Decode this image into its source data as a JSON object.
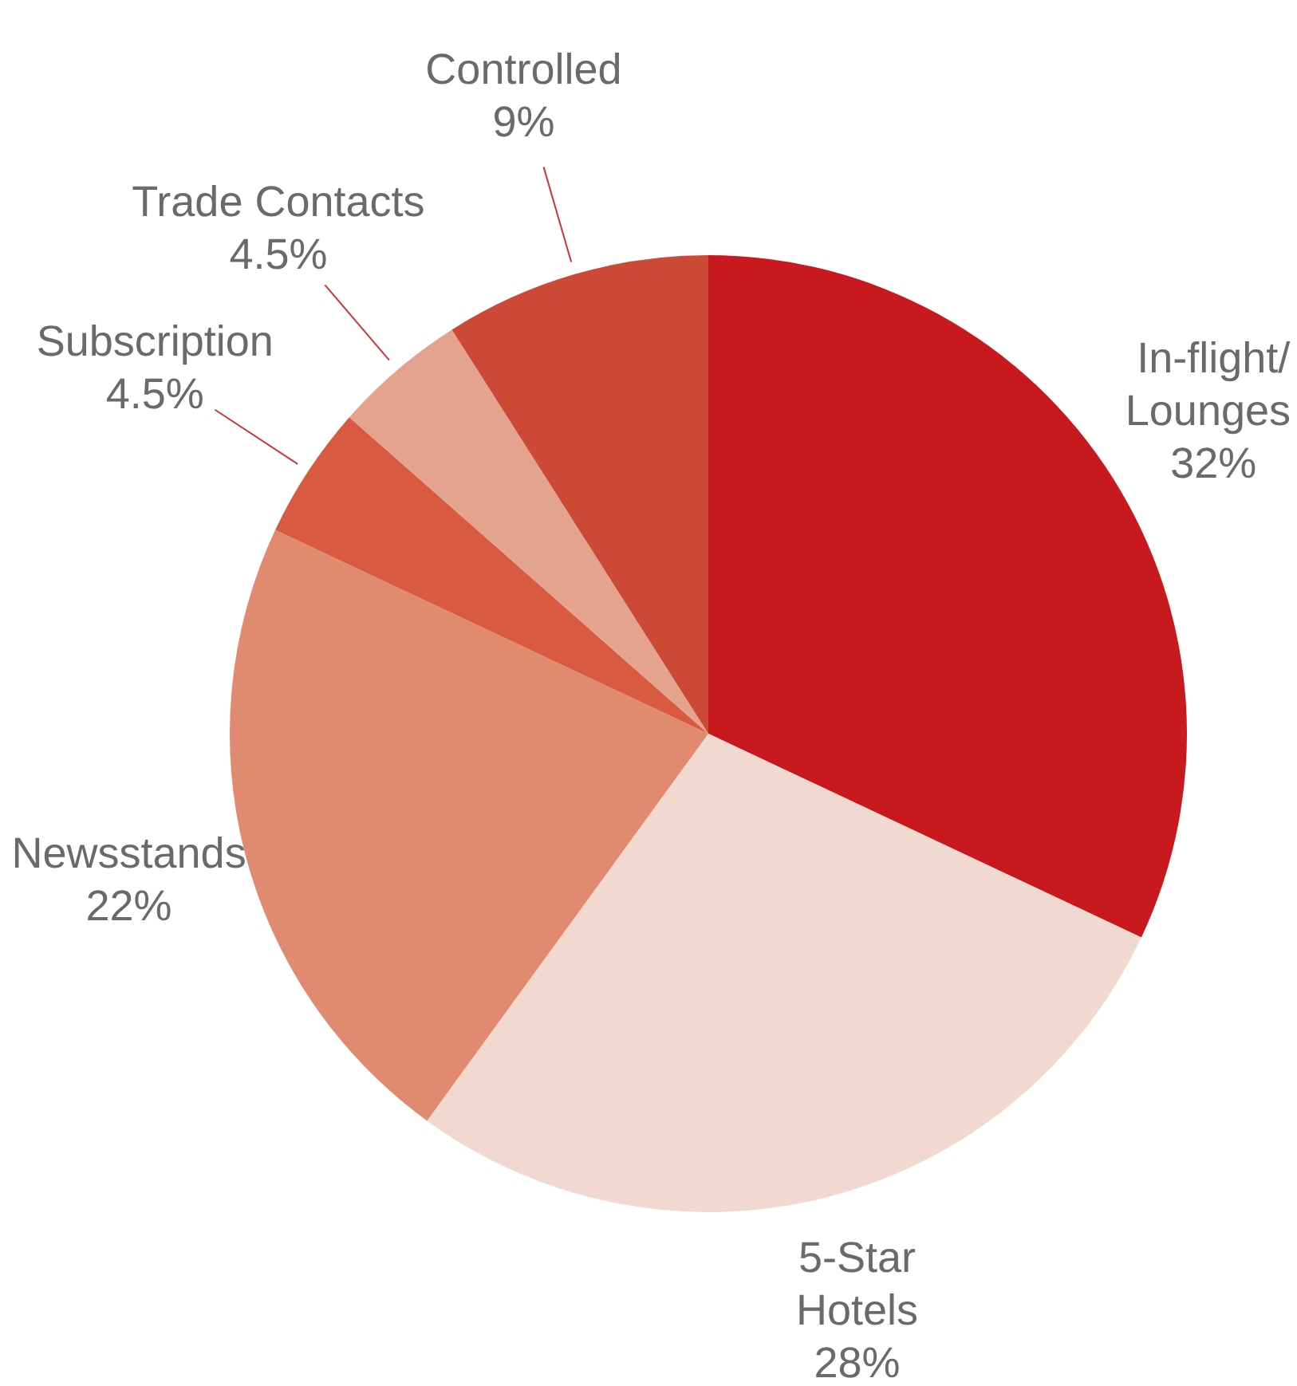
{
  "chart_data": {
    "type": "pie",
    "categories": [
      "In-flight/\nLounges",
      "5-Star\nHotels",
      "Newsstands",
      "Subscription",
      "Trade Contacts",
      "Controlled"
    ],
    "values": [
      32,
      28,
      22,
      4.5,
      4.5,
      9
    ],
    "colors": [
      "#c8191f",
      "#f2d9cf",
      "#e08a70",
      "#d85a40",
      "#e4a38e",
      "#cc4a35"
    ],
    "value_labels": [
      "32%",
      "28%",
      "22%",
      "4.5%",
      "4.5%",
      "9%"
    ],
    "legend": false
  }
}
